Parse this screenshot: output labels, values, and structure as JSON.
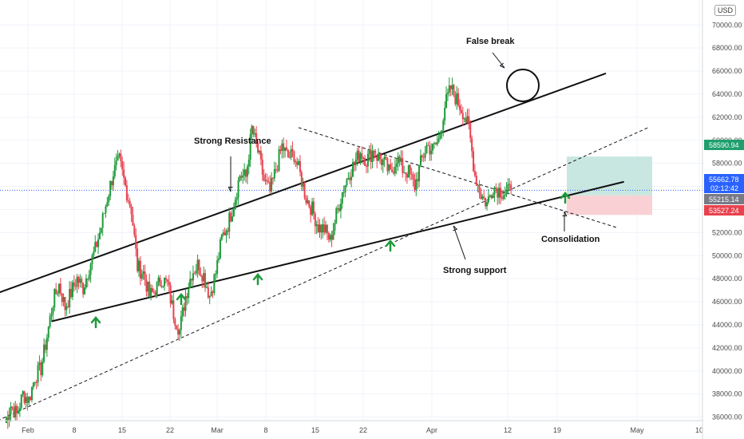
{
  "currency_button": "USD",
  "annotations": {
    "false_break": "False break",
    "strong_resistance": "Strong Resistance",
    "strong_support": "Strong support",
    "consolidation": "Consolidation"
  },
  "badges": {
    "take_profit": "58590.94",
    "current_price": "55662.78",
    "countdown": "02:12:42",
    "entry": "55215.14",
    "stop_loss": "53527.24"
  },
  "colors": {
    "up": "#26a69a",
    "down": "#ef5350",
    "candle_up": "#1e9a3a",
    "candle_down": "#e8424f",
    "profit_zone": "#bfe3dc",
    "loss_zone": "#f8c9cc",
    "current_badge": "#2962ff",
    "entry_badge": "#787b86",
    "arrow": "#1e9a3a"
  },
  "chart_data": {
    "type": "candlestick",
    "symbol_currency": "USD",
    "x_tick_labels": [
      "Feb",
      "8",
      "15",
      "22",
      "Mar",
      "8",
      "15",
      "22",
      "Apr",
      "12",
      "19",
      "May",
      "10"
    ],
    "y_tick_labels": [
      "36000.00",
      "38000.00",
      "40000.00",
      "42000.00",
      "44000.00",
      "46000.00",
      "48000.00",
      "50000.00",
      "52000.00",
      "54000.00",
      "56000.00",
      "58000.00",
      "60000.00",
      "62000.00",
      "64000.00",
      "66000.00",
      "68000.00",
      "70000.00"
    ],
    "ylim": [
      34500,
      71000
    ],
    "x_dates": [
      "2021-02-01",
      "2021-02-08",
      "2021-02-15",
      "2021-02-22",
      "2021-03-01",
      "2021-03-08",
      "2021-03-15",
      "2021-03-22",
      "2021-04-01",
      "2021-04-12",
      "2021-04-19",
      "2021-05-01",
      "2021-05-10"
    ],
    "price_path": [
      [
        0,
        35500
      ],
      [
        1,
        37000
      ],
      [
        2,
        36200
      ],
      [
        3,
        38000
      ],
      [
        4,
        37500
      ],
      [
        5,
        39500
      ],
      [
        6,
        40200
      ],
      [
        7,
        43000
      ],
      [
        8,
        46000
      ],
      [
        9,
        47500
      ],
      [
        10,
        45500
      ],
      [
        11,
        46800
      ],
      [
        12,
        48000
      ],
      [
        13,
        47200
      ],
      [
        14,
        49000
      ],
      [
        15,
        50500
      ],
      [
        16,
        52500
      ],
      [
        17,
        55000
      ],
      [
        18,
        57200
      ],
      [
        19,
        58200
      ],
      [
        20,
        56000
      ],
      [
        21,
        54000
      ],
      [
        22,
        49000
      ],
      [
        23,
        48500
      ],
      [
        24,
        46500
      ],
      [
        25,
        47000
      ],
      [
        26,
        48000
      ],
      [
        27,
        47500
      ],
      [
        28,
        45000
      ],
      [
        29,
        43500
      ],
      [
        30,
        46500
      ],
      [
        31,
        48500
      ],
      [
        32,
        49200
      ],
      [
        33,
        48300
      ],
      [
        34,
        46500
      ],
      [
        35,
        48500
      ],
      [
        36,
        51500
      ],
      [
        37,
        52700
      ],
      [
        38,
        54500
      ],
      [
        39,
        57000
      ],
      [
        40,
        56800
      ],
      [
        41,
        61000
      ],
      [
        42,
        59000
      ],
      [
        43,
        56500
      ],
      [
        44,
        55500
      ],
      [
        45,
        57500
      ],
      [
        46,
        59500
      ],
      [
        47,
        58500
      ],
      [
        48,
        58800
      ],
      [
        49,
        57000
      ],
      [
        50,
        55000
      ],
      [
        51,
        54000
      ],
      [
        52,
        52500
      ],
      [
        53,
        52300
      ],
      [
        54,
        51300
      ],
      [
        55,
        53500
      ],
      [
        56,
        55500
      ],
      [
        57,
        57000
      ],
      [
        58,
        58000
      ],
      [
        59,
        59000
      ],
      [
        60,
        58300
      ],
      [
        61,
        59000
      ],
      [
        62,
        58500
      ],
      [
        63,
        58000
      ],
      [
        64,
        57000
      ],
      [
        65,
        58500
      ],
      [
        66,
        57500
      ],
      [
        67,
        57200
      ],
      [
        68,
        56000
      ],
      [
        69,
        58000
      ],
      [
        70,
        59500
      ],
      [
        71,
        59200
      ],
      [
        72,
        60000
      ],
      [
        73,
        63000
      ],
      [
        74,
        64500
      ],
      [
        75,
        63500
      ],
      [
        76,
        62500
      ],
      [
        77,
        61000
      ],
      [
        78,
        57000
      ],
      [
        79,
        55300
      ],
      [
        80,
        54500
      ],
      [
        81,
        56000
      ],
      [
        82,
        55700
      ],
      [
        83,
        55400
      ],
      [
        84,
        55660
      ]
    ],
    "trade_setup": {
      "take_profit": 58590.94,
      "entry": 55215.14,
      "stop_loss": 53527.24,
      "current_price": 55662.78
    },
    "trendlines": [
      {
        "name": "resistance-channel-top",
        "from": [
          -6,
          45800
        ],
        "to": [
          100,
          65800
        ],
        "style": "solid"
      },
      {
        "name": "support-line",
        "from": [
          8,
          44300
        ],
        "to": [
          103,
          56400
        ],
        "style": "solid"
      },
      {
        "name": "channel-bottom-dashed",
        "from": [
          -6,
          34500
        ],
        "to": [
          107,
          61100
        ],
        "style": "dashed"
      },
      {
        "name": "descending-dashed",
        "from": [
          49,
          61100
        ],
        "to": [
          102,
          52400
        ],
        "style": "dashed"
      }
    ]
  }
}
